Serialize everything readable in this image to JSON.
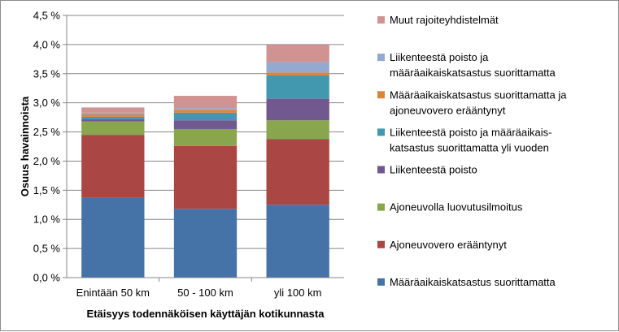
{
  "chart_data": {
    "type": "bar",
    "stacked": true,
    "xlabel": "Etäisyys todennäköisen käyttäjän kotikunnasta",
    "ylabel": "Osuus havainnoista",
    "ylim": [
      0,
      4.5
    ],
    "yticks": [
      "0,0 %",
      "0,5 %",
      "1,0 %",
      "1,5 %",
      "2,0 %",
      "2,5 %",
      "3,0 %",
      "3,5 %",
      "4,0 %",
      "4,5 %"
    ],
    "grid": true,
    "legend_position": "right",
    "categories": [
      "Enintään 50 km",
      "50 - 100 km",
      "yli 100 km"
    ],
    "series": [
      {
        "name": "Määräaikaiskatsastus suorittamatta",
        "color": "#4572a7",
        "values": [
          1.37,
          1.18,
          1.25
        ]
      },
      {
        "name": "Ajoneuvovero erääntynyt",
        "color": "#aa4643",
        "values": [
          1.08,
          1.08,
          1.13
        ]
      },
      {
        "name": "Ajoneuvolla luovutusilmoitus",
        "color": "#89a54e",
        "values": [
          0.23,
          0.29,
          0.32
        ]
      },
      {
        "name": "Liikenteestä poisto",
        "color": "#71588f",
        "values": [
          0.04,
          0.15,
          0.37
        ]
      },
      {
        "name": "Liikenteestä poisto ja määräaikais-katsastus suorittamatta yli vuoden",
        "lines": [
          "Liikenteestä poisto ja määräaikais-",
          "katsastus suorittamatta yli vuoden"
        ],
        "color": "#4198af",
        "values": [
          0.04,
          0.13,
          0.4
        ]
      },
      {
        "name": "Määräaikaiskatsastus suorittamatta ja ajoneuvovero erääntynyt",
        "lines": [
          "Määräaikaiskatsastus suorittamatta ja",
          "ajoneuvovero erääntynyt"
        ],
        "color": "#db843d",
        "values": [
          0.04,
          0.05,
          0.05
        ]
      },
      {
        "name": "Liikenteestä poisto ja määräaikaiskatsastus suorittamatta",
        "lines": [
          "Liikenteestä poisto ja",
          "määräaikaiskatsastus suorittamatta"
        ],
        "color": "#93a9cf",
        "values": [
          0.03,
          0.03,
          0.18
        ]
      },
      {
        "name": "Muut rajoiteyhdistelmät",
        "color": "#d19392",
        "values": [
          0.09,
          0.21,
          0.3
        ]
      }
    ]
  }
}
